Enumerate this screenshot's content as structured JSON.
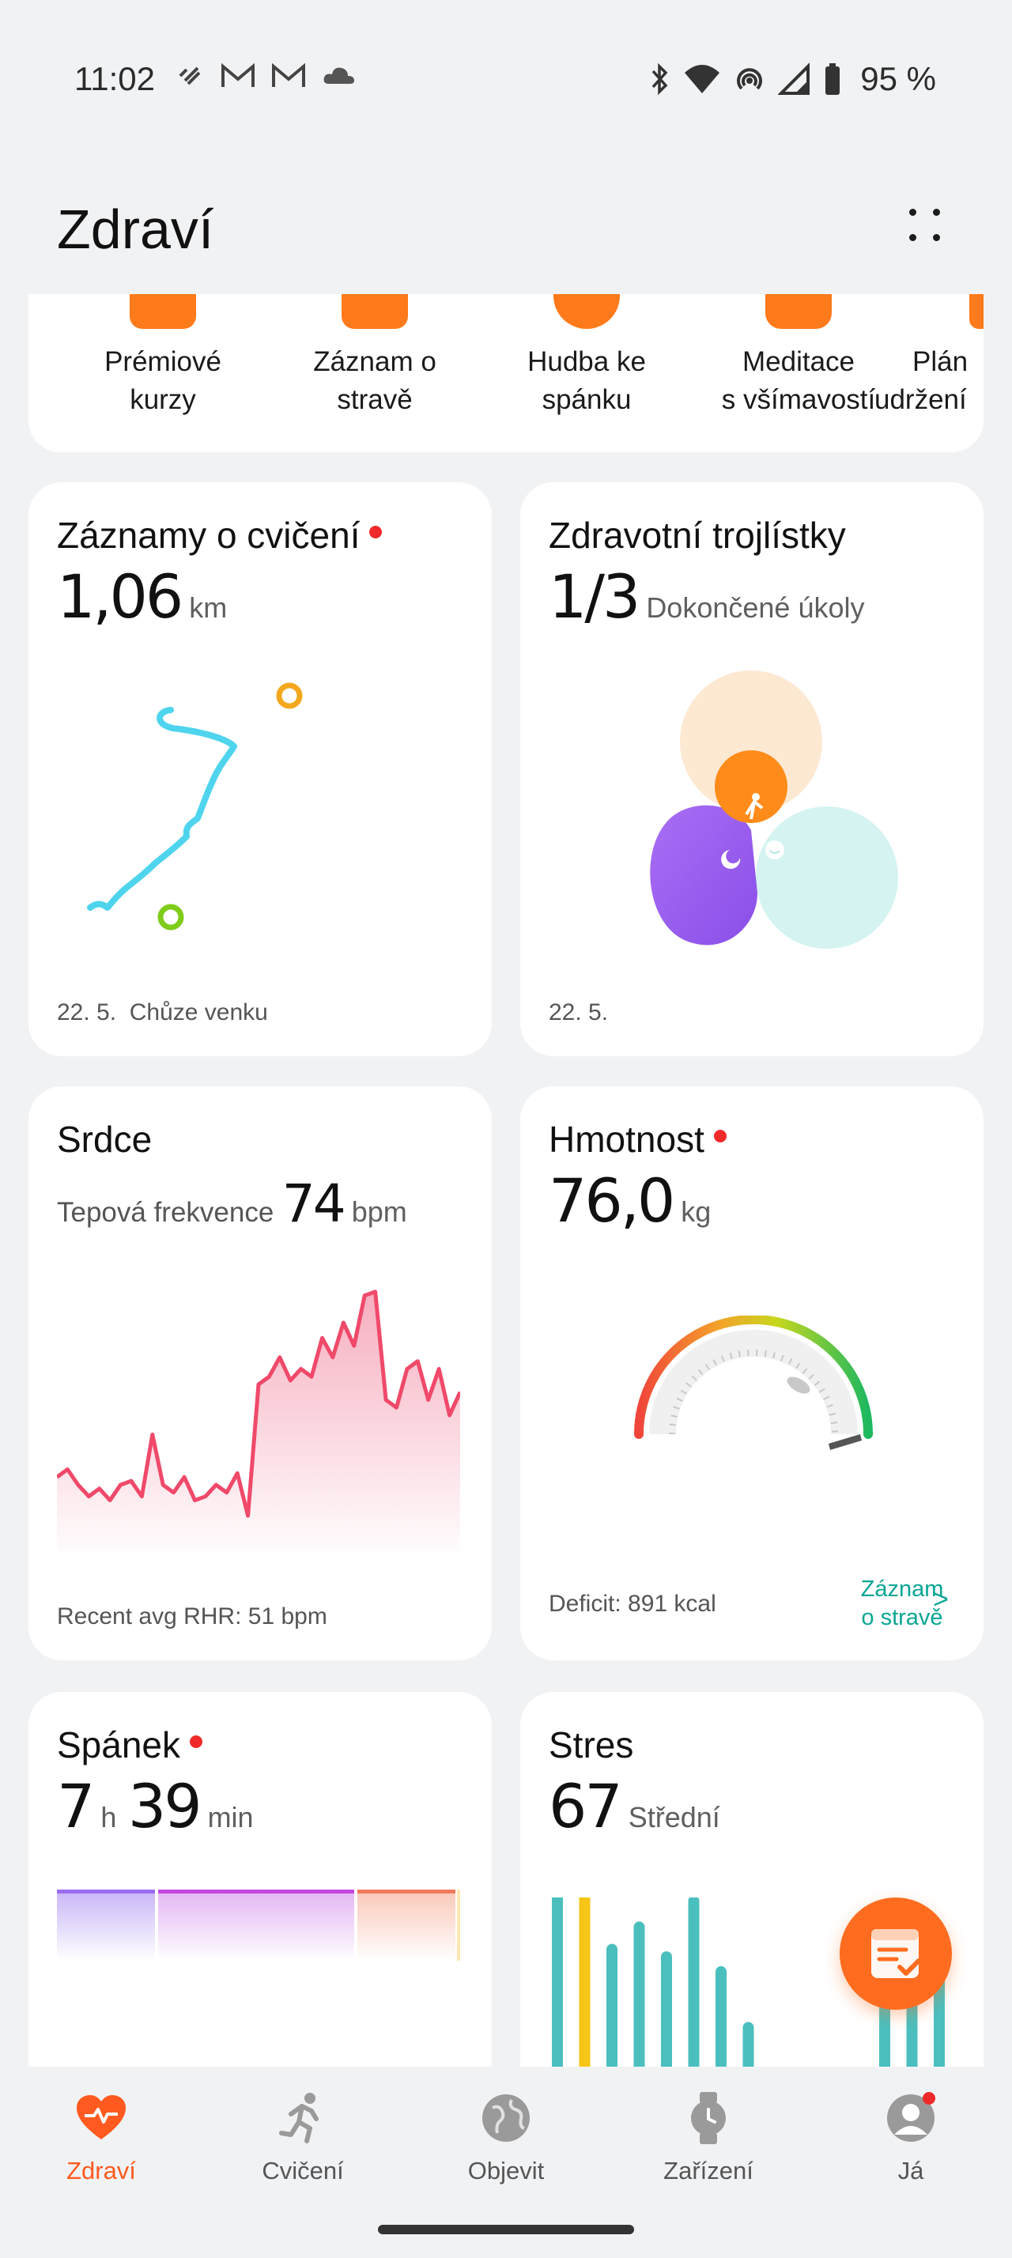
{
  "status_bar": {
    "time": "11:02",
    "battery": "95 %",
    "icons_left": [
      "huawei-health-icon",
      "gmail-icon",
      "gmail-icon",
      "cloud-icon"
    ],
    "icons_right": [
      "bluetooth-icon",
      "wifi-icon",
      "hotspot-icon",
      "signal-icon",
      "battery-icon"
    ]
  },
  "header": {
    "title": "Zdraví"
  },
  "shortcuts": [
    {
      "label": "Prémiové\nkurzy",
      "line1": "Prémiové",
      "line2": "kurzy"
    },
    {
      "line1": "Záznam o",
      "line2": "stravě"
    },
    {
      "line1": "Hudba ke",
      "line2": "spánku"
    },
    {
      "line1": "Meditace",
      "line2": "s všímavostí"
    },
    {
      "line1": "Plán",
      "line2": "udržení"
    }
  ],
  "cards": {
    "exercise": {
      "title": "Záznamy o cvičení",
      "value": "1,06",
      "unit": "km",
      "date": "22. 5.",
      "activity": "Chůze venku"
    },
    "trefoil": {
      "title": "Zdravotní trojlístky",
      "value": "1/3",
      "unit": "Dokončené úkoly",
      "date": "22. 5."
    },
    "heart": {
      "title": "Srdce",
      "label": "Tepová frekvence",
      "value": "74",
      "unit": "bpm",
      "footer": "Recent avg RHR: 51 bpm"
    },
    "weight": {
      "title": "Hmotnost",
      "value": "76,0",
      "unit": "kg",
      "deficit": "Deficit: 891 kcal",
      "link_line1": "Záznam",
      "link_line2": "o stravě",
      "link_arrow": ">"
    },
    "sleep": {
      "title": "Spánek",
      "hours": "7",
      "h_unit": "h",
      "minutes": "39",
      "m_unit": "min"
    },
    "stress": {
      "title": "Stres",
      "value": "67",
      "level": "Střední"
    }
  },
  "chart_data": [
    {
      "type": "area",
      "values": [
        60,
        62,
        58,
        55,
        57,
        54,
        58,
        59,
        55,
        71,
        58,
        56,
        60,
        54,
        55,
        58,
        56,
        61,
        50,
        84,
        86,
        91,
        85,
        88,
        86,
        96,
        91,
        100,
        94,
        107,
        108,
        80,
        78,
        88,
        90,
        80,
        88,
        76,
        82
      ],
      "color": "#f0496a"
    },
    {
      "type": "bar",
      "values": [
        48,
        50,
        33,
        39,
        31,
        46,
        27,
        12,
        0,
        0,
        0,
        0,
        30,
        20,
        31,
        17,
        2,
        57,
        61
      ],
      "colors": [
        "#4bbfbe",
        "#f7c517",
        "#4bbfbe",
        "#4bbfbe",
        "#4bbfbe",
        "#4bbfbe",
        "#4bbfbe",
        "#4bbfbe",
        "#4bbfbe",
        "#4bbfbe",
        "#4bbfbe",
        "#4bbfbe",
        "#4bbfbe",
        "#4bbfbe",
        "#4bbfbe",
        "#4bbfbe",
        "#4a90e2",
        "#f7c517",
        "#f7c517"
      ]
    }
  ],
  "nav": [
    {
      "label": "Zdraví",
      "icon": "heart-icon",
      "active": true
    },
    {
      "label": "Cvičení",
      "icon": "runner-icon"
    },
    {
      "label": "Objevit",
      "icon": "globe-icon"
    },
    {
      "label": "Zařízení",
      "icon": "watch-icon"
    },
    {
      "label": "Já",
      "icon": "user-icon"
    }
  ],
  "colors": {
    "accent": "#ff5a1f",
    "teal": "#0aa693",
    "route": "#4fd4ee"
  }
}
